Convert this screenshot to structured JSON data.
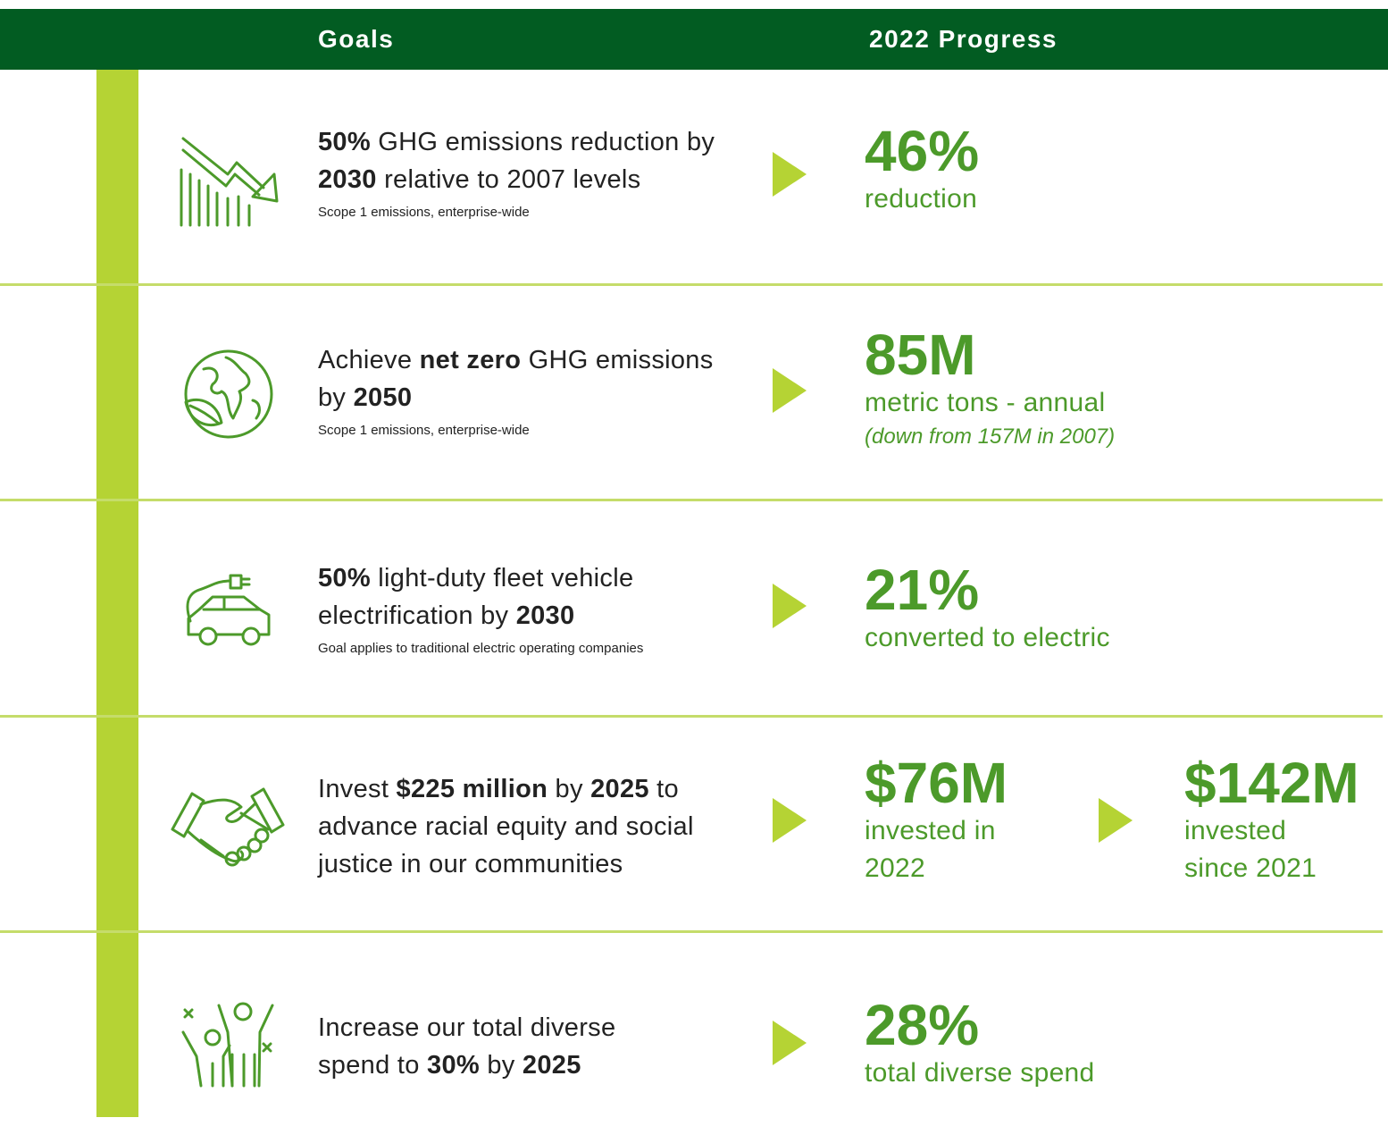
{
  "header": {
    "goals": "Goals",
    "progress": "2022 Progress"
  },
  "rows": [
    {
      "goal": [
        {
          "text": "50%",
          "bold": true
        },
        {
          "text": " GHG emissions reduction by "
        },
        {
          "text": "2030",
          "bold": true
        },
        {
          "text": " relative to 2007 levels"
        }
      ],
      "note": "Scope 1 emissions, enterprise-wide",
      "progress": [
        {
          "value": "46%",
          "label": "reduction"
        }
      ]
    },
    {
      "goal": [
        {
          "text": "Achieve "
        },
        {
          "text": "net zero",
          "bold": true
        },
        {
          "text": " GHG emissions by "
        },
        {
          "text": "2050",
          "bold": true
        }
      ],
      "note": "Scope 1 emissions, enterprise-wide",
      "progress": [
        {
          "value": "85M",
          "label": "metric tons - annual",
          "detail": "(down from 157M in 2007)"
        }
      ]
    },
    {
      "goal": [
        {
          "text": "50%",
          "bold": true
        },
        {
          "text": " light-duty fleet vehicle electrification by "
        },
        {
          "text": "2030",
          "bold": true
        }
      ],
      "note": "Goal applies to traditional electric operating companies",
      "progress": [
        {
          "value": "21%",
          "label": "converted to electric"
        }
      ]
    },
    {
      "goal": [
        {
          "text": "Invest "
        },
        {
          "text": "$225 million",
          "bold": true
        },
        {
          "text": " by "
        },
        {
          "text": "2025",
          "bold": true
        },
        {
          "text": " to advance racial equity and social justice in our communities"
        }
      ],
      "progress": [
        {
          "value": "$76M",
          "label": "invested in 2022"
        },
        {
          "value": "$142M",
          "label": "invested since 2021"
        }
      ]
    },
    {
      "goal": [
        {
          "text": "Increase our total diverse spend to "
        },
        {
          "text": "30%",
          "bold": true
        },
        {
          "text": " by "
        },
        {
          "text": "2025",
          "bold": true
        }
      ],
      "progress": [
        {
          "value": "28%",
          "label": "total diverse spend"
        }
      ]
    }
  ]
}
